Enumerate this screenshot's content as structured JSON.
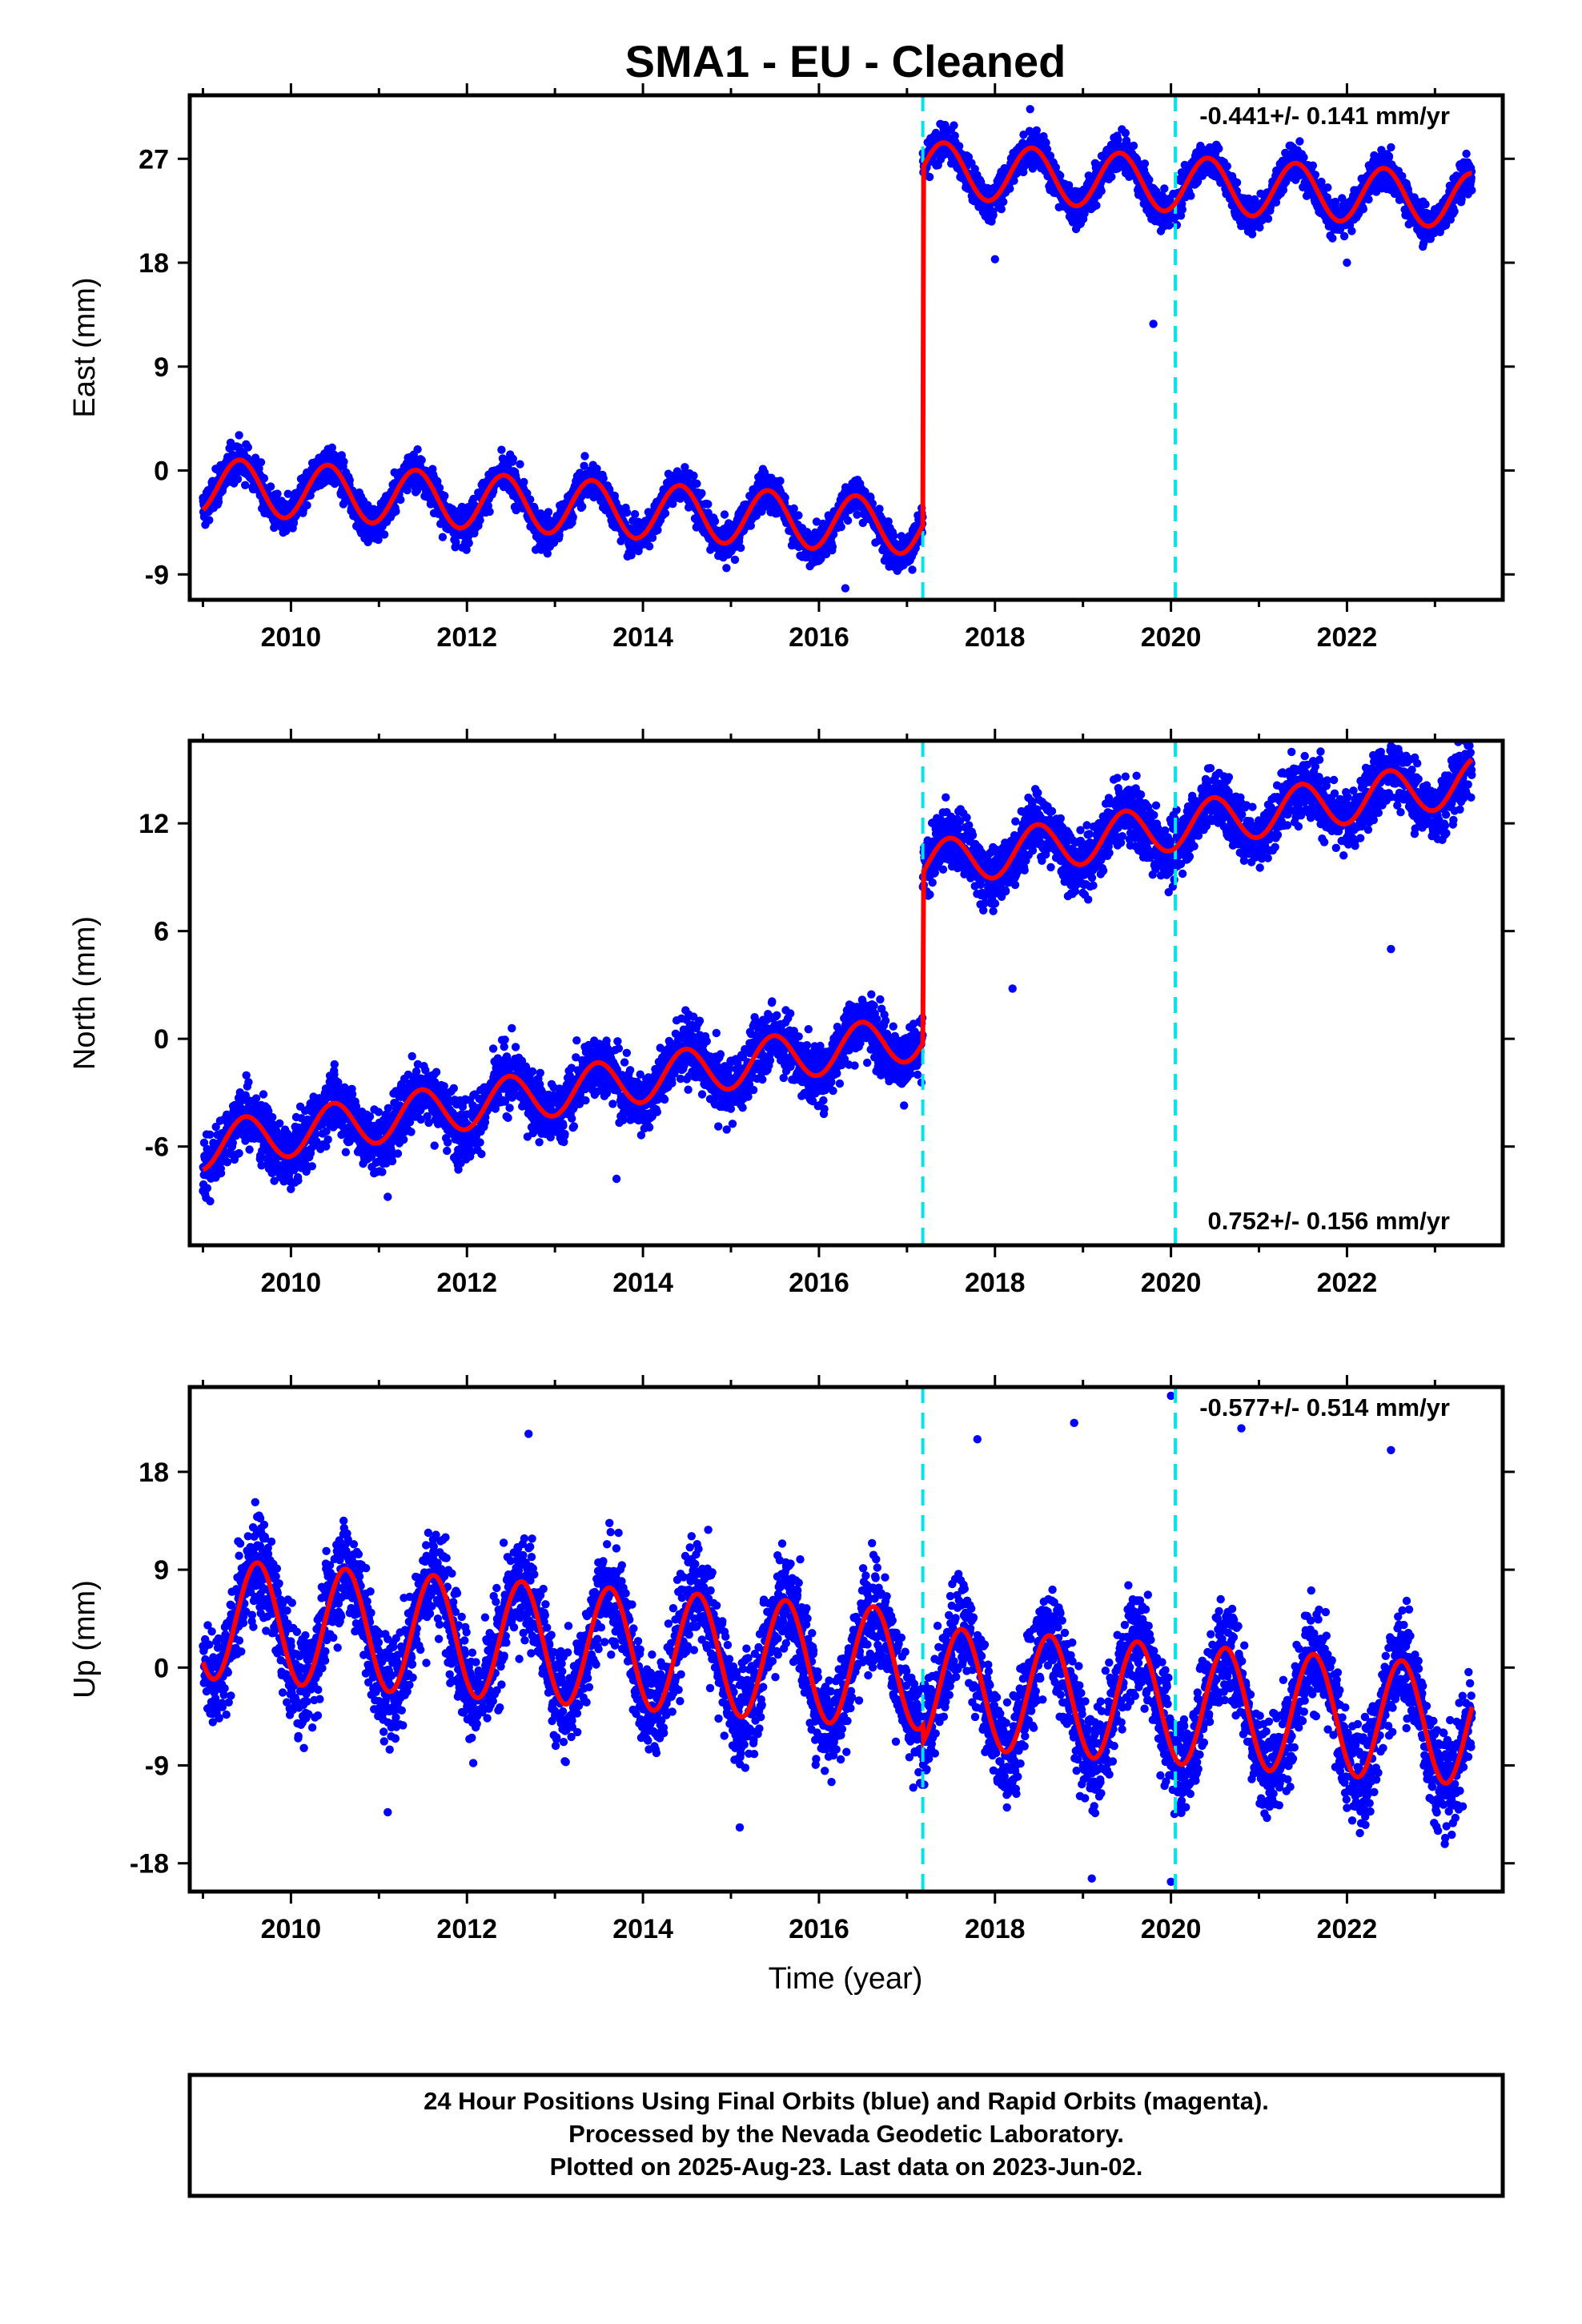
{
  "title": "SMA1  - EU - Cleaned",
  "xlabel": "Time (year)",
  "x_tick_labels": [
    "2010",
    "2012",
    "2014",
    "2016",
    "2018",
    "2020",
    "2022"
  ],
  "footer": {
    "line1": "24 Hour Positions Using Final Orbits (blue) and Rapid Orbits (magenta).",
    "line2": "Processed by the Nevada Geodetic Laboratory.",
    "line3": "Plotted on 2025-Aug-23. Last data on 2023-Jun-02."
  },
  "colors": {
    "points": "#0000ff",
    "model": "#ff0000",
    "steps": "#00e5e5",
    "frame": "#000000"
  },
  "chart_data": [
    {
      "type": "scatter",
      "name": "east",
      "ylabel": "East (mm)",
      "rate_label": "-0.441+/- 0.141 mm/yr",
      "rate_position": "top-right",
      "xlim": [
        2008.85,
        2023.77
      ],
      "ylim": [
        -11.2,
        32.5
      ],
      "yticks": [
        -9,
        0,
        9,
        18,
        27
      ],
      "ytick_labels": [
        "-9",
        "0",
        "9",
        "18",
        "27"
      ],
      "step_lines_x": [
        2017.18,
        2020.05
      ],
      "data_range": [
        2009.0,
        2023.42
      ],
      "model": {
        "offset": -1.3,
        "rate": -0.441,
        "amplitude": 2.4,
        "phase_peak": 0.42,
        "step_x": 2017.18,
        "step_size": 31.0,
        "noise": 1.1
      },
      "series": [
        {
          "name": "daily positions",
          "style": "points",
          "color": "#0000ff"
        },
        {
          "name": "model fit",
          "style": "line",
          "color": "#ff0000"
        }
      ],
      "outliers": [
        [
          2016.3,
          -10.2
        ],
        [
          2019.8,
          12.7
        ],
        [
          2018.0,
          18.3
        ],
        [
          2018.4,
          31.3
        ],
        [
          2022.5,
          28.0
        ],
        [
          2022.0,
          18.0
        ]
      ]
    },
    {
      "type": "scatter",
      "name": "north",
      "ylabel": "North (mm)",
      "rate_label": "0.752+/- 0.156 mm/yr",
      "rate_position": "bottom-right",
      "xlim": [
        2008.85,
        2023.77
      ],
      "ylim": [
        -11.5,
        16.6
      ],
      "yticks": [
        -6,
        0,
        6,
        12
      ],
      "ytick_labels": [
        "-6",
        "0",
        "6",
        "12"
      ],
      "step_lines_x": [
        2017.18,
        2020.05
      ],
      "data_range": [
        2009.0,
        2023.42
      ],
      "model": {
        "offset": -6.0,
        "rate": 0.752,
        "amplitude": 1.3,
        "phase_peak": 0.48,
        "step_x": 2017.18,
        "step_size": 9.5,
        "noise": 1.2
      },
      "series": [
        {
          "name": "daily positions",
          "style": "points",
          "color": "#0000ff"
        },
        {
          "name": "model fit",
          "style": "line",
          "color": "#ff0000"
        }
      ],
      "outliers": [
        [
          2011.1,
          -8.8
        ],
        [
          2013.7,
          -7.8
        ],
        [
          2018.2,
          2.8
        ],
        [
          2022.5,
          5.0
        ],
        [
          2022.5,
          16.3
        ],
        [
          2021.7,
          16.0
        ]
      ]
    },
    {
      "type": "scatter",
      "name": "up",
      "ylabel": "Up (mm)",
      "rate_label": "-0.577+/- 0.514 mm/yr",
      "rate_position": "top-right",
      "xlim": [
        2008.85,
        2023.77
      ],
      "ylim": [
        -20.6,
        25.8
      ],
      "yticks": [
        -18,
        -9,
        0,
        9,
        18
      ],
      "ytick_labels": [
        "-18",
        "-9",
        "0",
        "9",
        "18"
      ],
      "step_lines_x": [
        2017.18,
        2020.05
      ],
      "data_range": [
        2009.0,
        2023.42
      ],
      "model": {
        "offset": 4.5,
        "rate": -0.577,
        "amplitude": 5.5,
        "phase_peak": 0.62,
        "step_x": 2017.18,
        "step_size": -1.5,
        "noise": 3.3
      },
      "series": [
        {
          "name": "daily positions",
          "style": "points",
          "color": "#0000ff"
        },
        {
          "name": "model fit",
          "style": "line",
          "color": "#ff0000"
        }
      ],
      "outliers": [
        [
          2012.7,
          21.5
        ],
        [
          2017.8,
          21.0
        ],
        [
          2018.9,
          22.5
        ],
        [
          2020.0,
          25.0
        ],
        [
          2020.8,
          22.0
        ],
        [
          2022.5,
          20.0
        ],
        [
          2011.1,
          -13.3
        ],
        [
          2015.1,
          -14.7
        ],
        [
          2019.1,
          -19.4
        ],
        [
          2020.0,
          -19.7
        ]
      ]
    }
  ]
}
